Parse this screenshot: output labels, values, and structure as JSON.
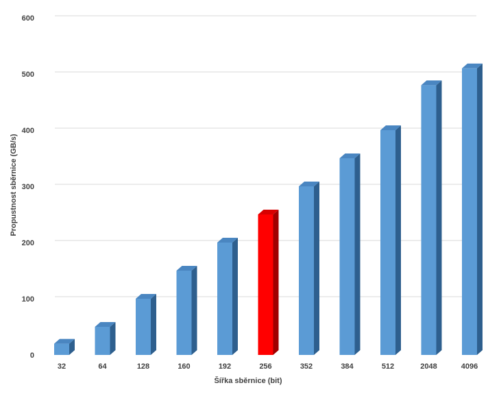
{
  "chart_data": {
    "type": "bar",
    "title": "",
    "xlabel": "Šířka sběrnice (bit)",
    "ylabel": "Propustnost sběrnice (GB/s)",
    "categories": [
      "32",
      "64",
      "128",
      "160",
      "192",
      "256",
      "352",
      "384",
      "512",
      "2048",
      "4096"
    ],
    "values": [
      20,
      50,
      100,
      150,
      200,
      250,
      300,
      350,
      400,
      480,
      510
    ],
    "highlight_index": 5,
    "ylim": [
      0,
      600
    ],
    "yticks": [
      0,
      100,
      200,
      300,
      400,
      500,
      600
    ],
    "grid": true,
    "legend": "none",
    "style": "3d-column"
  },
  "colors": {
    "bar_front": "#5B9BD5",
    "bar_side": "#2E5F8E",
    "bar_top": "#4A86C1",
    "highlight_front": "#FF0000",
    "highlight_side": "#A00000",
    "highlight_top": "#D80000",
    "grid": "#D9D9D9",
    "text": "#404040"
  }
}
